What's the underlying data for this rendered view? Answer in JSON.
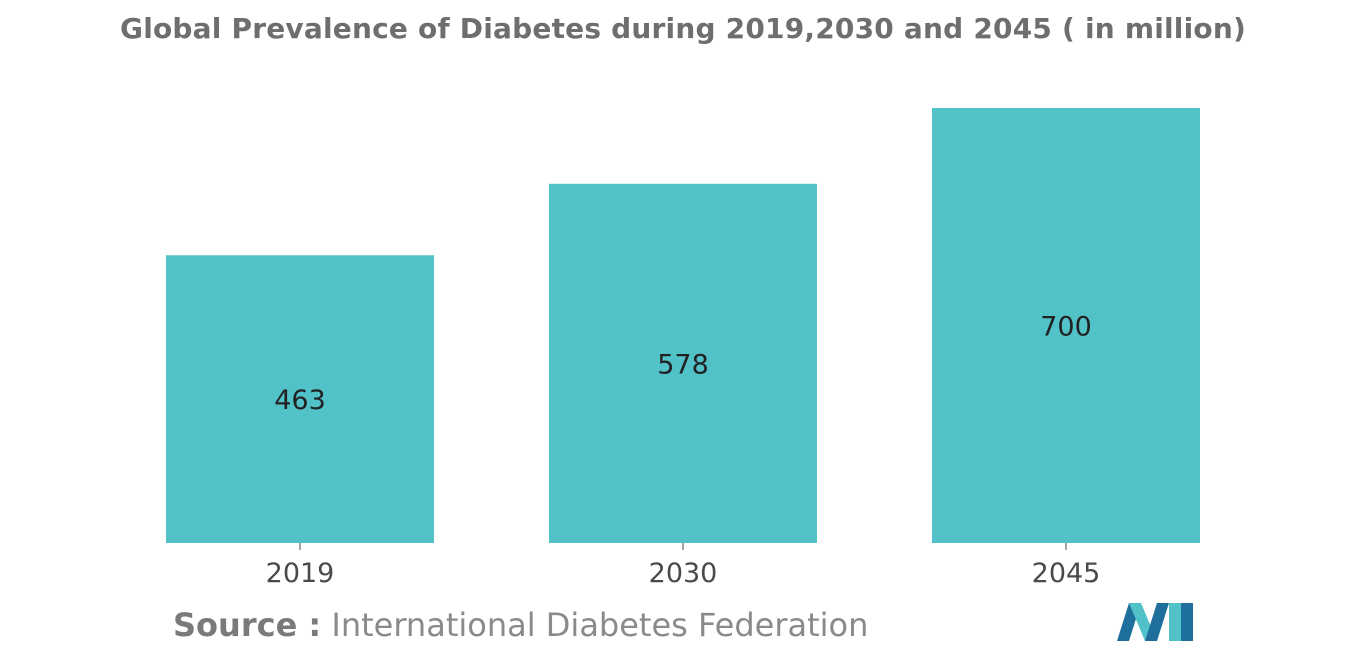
{
  "title": "Global Prevalence of Diabetes during 2019,2030 and 2045 ( in million)",
  "source": {
    "label": "Source :",
    "text": "International Diabetes Federation"
  },
  "colors": {
    "bar": "#52c2c9",
    "text": "#222222",
    "axis": "#4a4a4a"
  },
  "chart_data": {
    "type": "bar",
    "title": "Global Prevalence of Diabetes during 2019,2030 and 2045 ( in million)",
    "categories": [
      "2019",
      "2030",
      "2045"
    ],
    "values": [
      463,
      578,
      700
    ],
    "data_labels": [
      "463",
      "578",
      "700"
    ],
    "xlabel": "",
    "ylabel": "",
    "ylim": [
      0,
      700
    ],
    "grid": false,
    "legend": "none"
  },
  "logo": {
    "icon": "brand-logo-icon"
  }
}
